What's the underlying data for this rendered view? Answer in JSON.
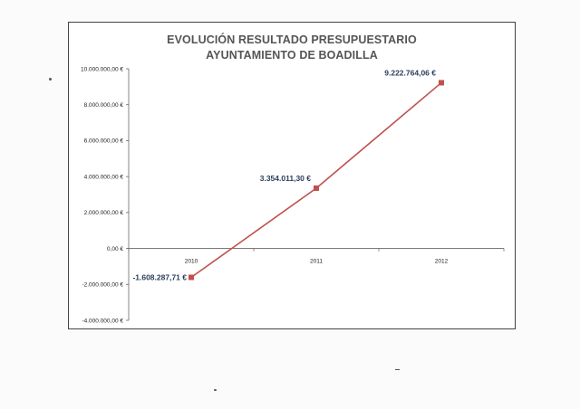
{
  "chart_data": {
    "type": "line",
    "title_line1": "EVOLUCIÓN RESULTADO PRESUPUESTARIO",
    "title_line2": "AYUNTAMIENTO DE BOADILLA",
    "categories": [
      "2010",
      "2011",
      "2012"
    ],
    "series": [
      {
        "values": [
          -1608287.71,
          3354011.3,
          9222764.06
        ],
        "labels": [
          "-1.608.287,71 €",
          "3.354.011,30 €",
          "9.222.764,06 €"
        ]
      }
    ],
    "y_ticks": [
      -4000000,
      -2000000,
      0,
      2000000,
      4000000,
      6000000,
      8000000,
      10000000
    ],
    "y_tick_labels": [
      "-4.000.000,00 €",
      "-2.000.000,00 €",
      "0,00 €",
      "2.000.000,00 €",
      "4.000.000,00 €",
      "6.000.000,00 €",
      "8.000.000,00 €",
      "10.000.000,00 €"
    ],
    "ylim": [
      -4000000,
      10000000
    ],
    "grid": false,
    "line_color": "#c0504d",
    "marker_color": "#c0504d",
    "label_color": "#2a3f5a"
  }
}
